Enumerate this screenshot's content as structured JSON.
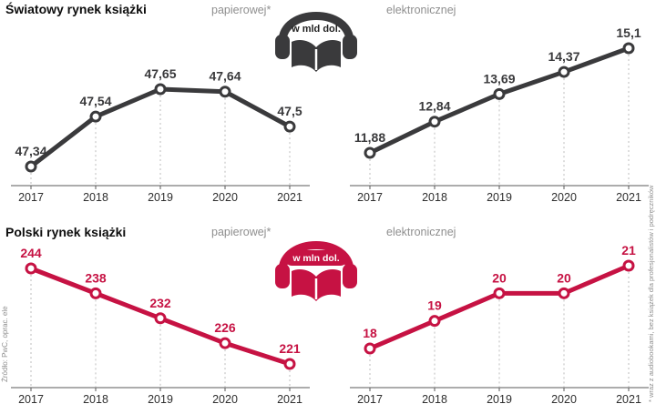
{
  "colors": {
    "dark": "#3a3a3c",
    "red": "#c61243",
    "axis": "#5a5a5a",
    "dash": "#bdbdbd",
    "year": "#2e2e2e",
    "muted": "#8f8f8f",
    "title": "#0e0e0e"
  },
  "rows": [
    {
      "title": "Światowy rynek książki",
      "paper_label": "papierowej*",
      "electronic_label": "elektronicznej",
      "unit": "w mld dol."
    },
    {
      "title": "Polski rynek książki",
      "paper_label": "papierowej*",
      "electronic_label": "elektronicznej",
      "unit": "w mln dol."
    }
  ],
  "source_note": "Źródło: PwC, oprac. ele",
  "footnote": "* wraz z audiobookami, bez książek dla profesjonalistów i podręczników",
  "chart_data": [
    {
      "type": "line",
      "title": "Światowy rynek książki papierowej*",
      "unit": "w mld dol.",
      "categories": [
        "2017",
        "2018",
        "2019",
        "2020",
        "2021"
      ],
      "values": [
        47.34,
        47.54,
        47.65,
        47.64,
        47.5
      ],
      "point_labels": [
        "47,34",
        "47,54",
        "47,65",
        "47,64",
        "47,5"
      ],
      "color_key": "dark",
      "ylim": [
        47.3,
        47.7
      ],
      "marker": "open-circle",
      "grid": "dashed-vertical-guides"
    },
    {
      "type": "line",
      "title": "Światowy rynek książki elektronicznej",
      "unit": "w mld dol.",
      "categories": [
        "2017",
        "2018",
        "2019",
        "2020",
        "2021"
      ],
      "values": [
        11.88,
        12.84,
        13.69,
        14.37,
        15.1
      ],
      "point_labels": [
        "11,88",
        "12,84",
        "13,69",
        "14,37",
        "15,1"
      ],
      "color_key": "dark",
      "ylim": [
        11.5,
        15.5
      ],
      "marker": "open-circle",
      "grid": "dashed-vertical-guides"
    },
    {
      "type": "line",
      "title": "Polski rynek książki papierowej*",
      "unit": "w mln dol.",
      "categories": [
        "2017",
        "2018",
        "2019",
        "2020",
        "2021"
      ],
      "values": [
        244,
        238,
        232,
        226,
        221
      ],
      "point_labels": [
        "244",
        "238",
        "232",
        "226",
        "221"
      ],
      "color_key": "red",
      "ylim": [
        218,
        246
      ],
      "marker": "open-circle",
      "grid": "dashed-vertical-guides"
    },
    {
      "type": "line",
      "title": "Polski rynek książki elektronicznej",
      "unit": "w mln dol.",
      "categories": [
        "2017",
        "2018",
        "2019",
        "2020",
        "2021"
      ],
      "values": [
        18,
        19,
        20,
        20,
        21
      ],
      "point_labels": [
        "18",
        "19",
        "20",
        "20",
        "21"
      ],
      "color_key": "red",
      "ylim": [
        17.5,
        21.5
      ],
      "marker": "open-circle",
      "grid": "dashed-vertical-guides"
    }
  ]
}
